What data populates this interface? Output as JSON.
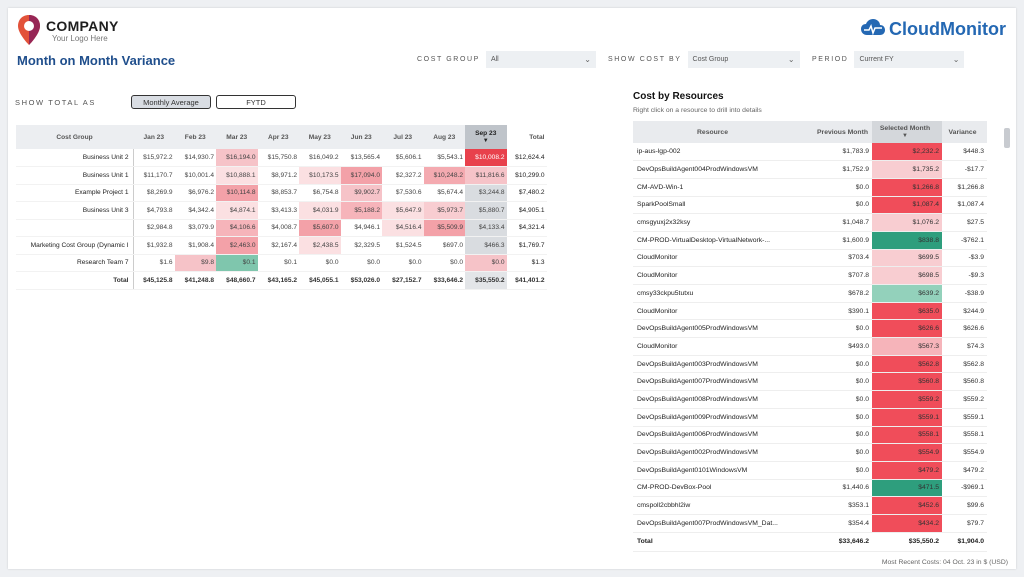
{
  "logo": {
    "company": "COMPANY",
    "tagline": "Your Logo Here"
  },
  "brand": {
    "name": "CloudMonitor"
  },
  "page_title": "Month on Month Variance",
  "filters": {
    "cost_group": {
      "label": "COST GROUP",
      "value": "All"
    },
    "show_cost_by": {
      "label": "SHOW COST BY",
      "value": "Cost Group"
    },
    "period": {
      "label": "PERIOD",
      "value": "Current FY"
    }
  },
  "show_total": {
    "label": "SHOW TOTAL AS",
    "options": [
      "Monthly Average",
      "FYTD"
    ],
    "selected": "Monthly Average"
  },
  "matrix": {
    "row_header": "Cost Group",
    "months": [
      "Jan 23",
      "Feb 23",
      "Mar 23",
      "Apr 23",
      "May 23",
      "Jun 23",
      "Jul 23",
      "Aug 23",
      "Sep 23"
    ],
    "total_header": "Total",
    "rows": [
      {
        "label": "Business Unit 2",
        "values": [
          "$15,972.2",
          "$14,930.7",
          "$16,194.0",
          "$15,750.8",
          "$16,049.2",
          "$13,565.4",
          "$5,606.1",
          "$5,543.1",
          "$10,008.2"
        ],
        "total": "$12,624.4",
        "colors": [
          "",
          "",
          "#f6c3c8",
          "",
          "",
          "",
          "",
          "",
          "#e8414c"
        ]
      },
      {
        "label": "Business Unit 1",
        "values": [
          "$11,170.7",
          "$10,001.4",
          "$10,888.1",
          "$8,971.2",
          "$10,173.5",
          "$17,094.0",
          "$2,327.2",
          "$10,248.2",
          "$11,816.6"
        ],
        "total": "$10,299.0",
        "colors": [
          "",
          "",
          "#fbe0e2",
          "",
          "#fbe0e2",
          "#f3a1a8",
          "",
          "#f4aab0",
          "#f6c3c8"
        ]
      },
      {
        "label": "Example Project 1",
        "values": [
          "$8,269.9",
          "$6,976.2",
          "$10,114.8",
          "$8,853.7",
          "$6,754.8",
          "$9,902.7",
          "$7,530.6",
          "$5,674.4",
          "$3,244.8"
        ],
        "total": "$7,480.2",
        "colors": [
          "",
          "",
          "#f3a1a8",
          "",
          "",
          "#f6c3c8",
          "",
          "",
          "#d9dce0"
        ]
      },
      {
        "label": "Business Unit 3",
        "values": [
          "$4,793.8",
          "$4,342.4",
          "$4,874.1",
          "$3,413.3",
          "$4,031.9",
          "$5,188.2",
          "$5,647.9",
          "$5,973.7",
          "$5,880.7"
        ],
        "total": "$4,905.1",
        "colors": [
          "",
          "",
          "#fbe0e2",
          "",
          "#fbe0e2",
          "#f6b4ba",
          "#fbe0e2",
          "#f8cdd1",
          "#d9dce0"
        ]
      },
      {
        "label": "",
        "values": [
          "$2,984.8",
          "$3,079.9",
          "$4,106.6",
          "$4,008.7",
          "$5,607.0",
          "$4,946.1",
          "$4,516.4",
          "$5,509.9",
          "$4,133.4"
        ],
        "total": "$4,321.4",
        "colors": [
          "",
          "",
          "#f6b4ba",
          "",
          "#f3a1a8",
          "",
          "#fbe0e2",
          "#f3a1a8",
          "#d9dce0"
        ]
      },
      {
        "label": "Marketing Cost Group (Dynamic I",
        "values": [
          "$1,932.8",
          "$1,908.4",
          "$2,463.0",
          "$2,167.4",
          "$2,438.5",
          "$2,329.5",
          "$1,524.5",
          "$697.0",
          "$466.3"
        ],
        "total": "$1,769.7",
        "colors": [
          "",
          "",
          "#f3a1a8",
          "",
          "#fbe0e2",
          "",
          "",
          "",
          "#d9dce0"
        ]
      },
      {
        "label": "Research Team 7",
        "values": [
          "$1.6",
          "$9.8",
          "$0.1",
          "$0.1",
          "$0.0",
          "$0.0",
          "$0.0",
          "$0.0",
          "$0.0"
        ],
        "total": "$1.3",
        "colors": [
          "",
          "#f6c3c8",
          "#7fc6ad",
          "",
          "",
          "",
          "",
          "",
          "#f6c3c8"
        ]
      }
    ],
    "totals": {
      "label": "Total",
      "values": [
        "$45,125.8",
        "$41,248.8",
        "$48,660.7",
        "$43,165.2",
        "$45,055.1",
        "$53,026.0",
        "$27,152.7",
        "$33,646.2",
        "$35,550.2"
      ],
      "total": "$41,401.2"
    }
  },
  "resources": {
    "title": "Cost by Resources",
    "subtitle": "Right click on a resource to drill into details",
    "headers": [
      "Resource",
      "Previous Month",
      "Selected Month",
      "Variance"
    ],
    "rows": [
      {
        "name": "ip-aus-lgp-002",
        "prev": "$1,783.9",
        "sel": "$2,232.2",
        "var": "$448.3",
        "color": "#f04d5a"
      },
      {
        "name": "DevOpsBuildAgent004ProdWindowsVM",
        "prev": "$1,752.9",
        "sel": "$1,735.2",
        "var": "-$17.7",
        "color": "#f8cdd1"
      },
      {
        "name": "CM-AVD-Win-1",
        "prev": "$0.0",
        "sel": "$1,266.8",
        "var": "$1,266.8",
        "color": "#f04d5a"
      },
      {
        "name": "SparkPoolSmall",
        "prev": "$0.0",
        "sel": "$1,087.4",
        "var": "$1,087.4",
        "color": "#f04d5a"
      },
      {
        "name": "cmsgyuxj2x32ksy",
        "prev": "$1,048.7",
        "sel": "$1,076.2",
        "var": "$27.5",
        "color": "#f8cdd1"
      },
      {
        "name": "CM-PROD-VirtualDesktop-VirtualNetwork-...",
        "prev": "$1,600.9",
        "sel": "$838.8",
        "var": "-$762.1",
        "color": "#2e9e7d"
      },
      {
        "name": "CloudMonitor",
        "prev": "$703.4",
        "sel": "$699.5",
        "var": "-$3.9",
        "color": "#f8cdd1"
      },
      {
        "name": "CloudMonitor",
        "prev": "$707.8",
        "sel": "$698.5",
        "var": "-$9.3",
        "color": "#f8cdd1"
      },
      {
        "name": "cmsy33ckpu5tutxu",
        "prev": "$678.2",
        "sel": "$639.2",
        "var": "-$38.9",
        "color": "#93d1bb"
      },
      {
        "name": "CloudMonitor",
        "prev": "$390.1",
        "sel": "$635.0",
        "var": "$244.9",
        "color": "#f04d5a"
      },
      {
        "name": "DevOpsBuildAgent005ProdWindowsVM",
        "prev": "$0.0",
        "sel": "$626.6",
        "var": "$626.6",
        "color": "#f04d5a"
      },
      {
        "name": "CloudMonitor",
        "prev": "$493.0",
        "sel": "$567.3",
        "var": "$74.3",
        "color": "#f6b4ba"
      },
      {
        "name": "DevOpsBuildAgent003ProdWindowsVM",
        "prev": "$0.0",
        "sel": "$562.8",
        "var": "$562.8",
        "color": "#f04d5a"
      },
      {
        "name": "DevOpsBuildAgent007ProdWindowsVM",
        "prev": "$0.0",
        "sel": "$560.8",
        "var": "$560.8",
        "color": "#f04d5a"
      },
      {
        "name": "DevOpsBuildAgent008ProdWindowsVM",
        "prev": "$0.0",
        "sel": "$559.2",
        "var": "$559.2",
        "color": "#f04d5a"
      },
      {
        "name": "DevOpsBuildAgent009ProdWindowsVM",
        "prev": "$0.0",
        "sel": "$559.1",
        "var": "$559.1",
        "color": "#f04d5a"
      },
      {
        "name": "DevOpsBuildAgent006ProdWindowsVM",
        "prev": "$0.0",
        "sel": "$558.1",
        "var": "$558.1",
        "color": "#f04d5a"
      },
      {
        "name": "DevOpsBuildAgent002ProdWindowsVM",
        "prev": "$0.0",
        "sel": "$554.9",
        "var": "$554.9",
        "color": "#f04d5a"
      },
      {
        "name": "DevOpsBuildAgent0101WindowsVM",
        "prev": "$0.0",
        "sel": "$479.2",
        "var": "$479.2",
        "color": "#f04d5a"
      },
      {
        "name": "CM-PROD-DevBox-Pool",
        "prev": "$1,440.6",
        "sel": "$471.5",
        "var": "-$969.1",
        "color": "#2e9e7d"
      },
      {
        "name": "cmspoll2cbbhl2iw",
        "prev": "$353.1",
        "sel": "$452.6",
        "var": "$99.6",
        "color": "#f04d5a"
      },
      {
        "name": "DevOpsBuildAgent007ProdWindowsVM_Dat...",
        "prev": "$354.4",
        "sel": "$434.2",
        "var": "$79.7",
        "color": "#f04d5a"
      }
    ],
    "totals": {
      "label": "Total",
      "prev": "$33,646.2",
      "sel": "$35,550.2",
      "var": "$1,904.0"
    }
  },
  "footer_note": "Most Recent Costs: 04 Oct. 23 in $ (USD)",
  "theme": {
    "title_color": "#1f4e8c",
    "brand_color": "#2468b3",
    "logo_color": "#e2523a"
  }
}
